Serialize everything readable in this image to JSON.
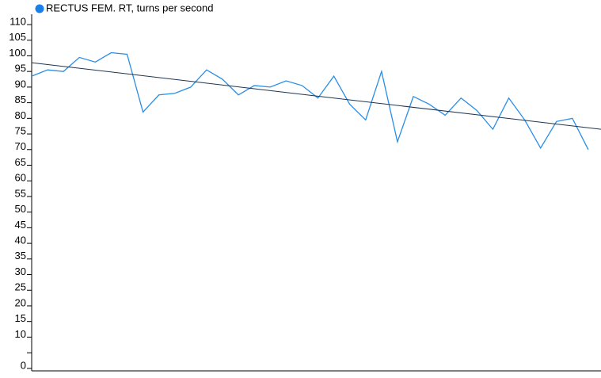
{
  "chart_data": {
    "type": "line",
    "x": [
      1,
      2,
      3,
      4,
      5,
      6,
      7,
      8,
      9,
      10,
      11,
      12,
      13,
      14,
      15,
      16,
      17,
      18,
      19,
      20,
      21,
      22,
      23,
      24,
      25,
      26,
      27,
      28,
      29,
      30,
      31,
      32,
      33,
      34,
      35,
      36
    ],
    "xlim": [
      1,
      36.8
    ],
    "series": [
      {
        "name": "RECTUS FEM. RT, turns per second",
        "color": "#2a8de6",
        "values": [
          93.5,
          95.5,
          95,
          99.5,
          98,
          101,
          100.5,
          82,
          87.5,
          88,
          90,
          95.5,
          92.5,
          87.5,
          90.5,
          90,
          92,
          90.5,
          86.5,
          93.5,
          84.5,
          79.5,
          95,
          72.5,
          87,
          84.5,
          81,
          86.5,
          82.5,
          76.5,
          86.5,
          79.5,
          70.5,
          79,
          80,
          70
        ]
      }
    ],
    "trend": {
      "x": [
        1,
        36.8
      ],
      "values": [
        97.8,
        76.5
      ],
      "color": "#1c3550"
    },
    "legend_marker_color": "#1a7fe8",
    "ylim": [
      -0.8,
      113.3
    ],
    "yticks": [
      0,
      {
        "value": 5,
        "label": null
      },
      10,
      15,
      20,
      25,
      30,
      35,
      40,
      45,
      50,
      55,
      60,
      65,
      70,
      75,
      80,
      85,
      90,
      95,
      100,
      105,
      110
    ]
  }
}
